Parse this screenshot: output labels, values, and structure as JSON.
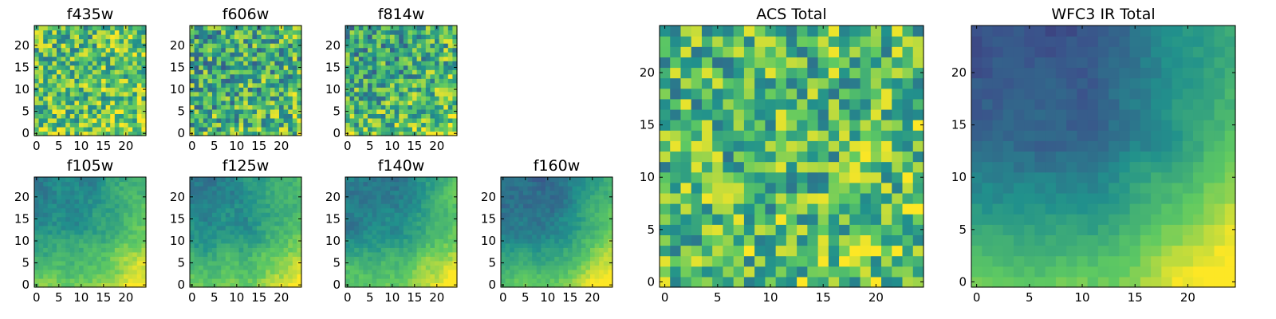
{
  "chart_data": [
    {
      "id": "f435w",
      "type": "heatmap",
      "title": "f435w",
      "grid_size": 25,
      "xticks": [
        0,
        5,
        10,
        15,
        20
      ],
      "yticks": [
        0,
        5,
        10,
        15,
        20
      ],
      "xlim": [
        0,
        24
      ],
      "ylim": [
        0,
        24
      ],
      "colormap": "viridis",
      "pattern": "noise",
      "seed": 11,
      "mean": 0.7,
      "amp": 0.55,
      "gradient": 0.15
    },
    {
      "id": "f606w",
      "type": "heatmap",
      "title": "f606w",
      "grid_size": 25,
      "xticks": [
        0,
        5,
        10,
        15,
        20
      ],
      "yticks": [
        0,
        5,
        10,
        15,
        20
      ],
      "xlim": [
        0,
        24
      ],
      "ylim": [
        0,
        24
      ],
      "colormap": "viridis",
      "pattern": "noise",
      "seed": 23,
      "mean": 0.62,
      "amp": 0.6,
      "gradient": 0.18
    },
    {
      "id": "f814w",
      "type": "heatmap",
      "title": "f814w",
      "grid_size": 25,
      "xticks": [
        0,
        5,
        10,
        15,
        20
      ],
      "yticks": [
        0,
        5,
        10,
        15,
        20
      ],
      "xlim": [
        0,
        24
      ],
      "ylim": [
        0,
        24
      ],
      "colormap": "viridis",
      "pattern": "noise",
      "seed": 37,
      "mean": 0.62,
      "amp": 0.55,
      "gradient": 0.3
    },
    {
      "id": "f105w",
      "type": "heatmap",
      "title": "f105w",
      "grid_size": 25,
      "xticks": [
        0,
        5,
        10,
        15,
        20
      ],
      "yticks": [
        0,
        5,
        10,
        15,
        20
      ],
      "xlim": [
        0,
        24
      ],
      "ylim": [
        0,
        24
      ],
      "colormap": "viridis",
      "pattern": "smooth",
      "seed": 41,
      "mean": 0.55,
      "amp": 0.3,
      "gradient": 0.7
    },
    {
      "id": "f125w",
      "type": "heatmap",
      "title": "f125w",
      "grid_size": 25,
      "xticks": [
        0,
        5,
        10,
        15,
        20
      ],
      "yticks": [
        0,
        5,
        10,
        15,
        20
      ],
      "xlim": [
        0,
        24
      ],
      "ylim": [
        0,
        24
      ],
      "colormap": "viridis",
      "pattern": "smooth",
      "seed": 53,
      "mean": 0.55,
      "amp": 0.3,
      "gradient": 0.65
    },
    {
      "id": "f140w",
      "type": "heatmap",
      "title": "f140w",
      "grid_size": 25,
      "xticks": [
        0,
        5,
        10,
        15,
        20
      ],
      "yticks": [
        0,
        5,
        10,
        15,
        20
      ],
      "xlim": [
        0,
        24
      ],
      "ylim": [
        0,
        24
      ],
      "colormap": "viridis",
      "pattern": "smooth",
      "seed": 67,
      "mean": 0.52,
      "amp": 0.28,
      "gradient": 0.75
    },
    {
      "id": "f160w",
      "type": "heatmap",
      "title": "f160w",
      "grid_size": 25,
      "xticks": [
        0,
        5,
        10,
        15,
        20
      ],
      "yticks": [
        0,
        5,
        10,
        15,
        20
      ],
      "xlim": [
        0,
        24
      ],
      "ylim": [
        0,
        24
      ],
      "colormap": "viridis",
      "pattern": "smooth",
      "seed": 71,
      "mean": 0.48,
      "amp": 0.25,
      "gradient": 0.85
    },
    {
      "id": "acs_total",
      "type": "heatmap",
      "title": "ACS Total",
      "grid_size": 25,
      "xticks": [
        0,
        5,
        10,
        15,
        20
      ],
      "yticks": [
        0,
        5,
        10,
        15,
        20
      ],
      "xlim": [
        0,
        24
      ],
      "ylim": [
        0,
        24
      ],
      "colormap": "viridis",
      "pattern": "noise",
      "seed": 83,
      "mean": 0.68,
      "amp": 0.55,
      "gradient": 0.12
    },
    {
      "id": "wfc3_ir_total",
      "type": "heatmap",
      "title": "WFC3 IR Total",
      "grid_size": 25,
      "xticks": [
        0,
        5,
        10,
        15,
        20
      ],
      "yticks": [
        0,
        5,
        10,
        15,
        20
      ],
      "xlim": [
        0,
        24
      ],
      "ylim": [
        0,
        24
      ],
      "colormap": "viridis",
      "pattern": "smooth",
      "seed": 97,
      "mean": 0.42,
      "amp": 0.18,
      "gradient": 1.0
    }
  ],
  "colormap_stops": [
    "#440154",
    "#3b528b",
    "#21918c",
    "#5ec962",
    "#fde725"
  ]
}
